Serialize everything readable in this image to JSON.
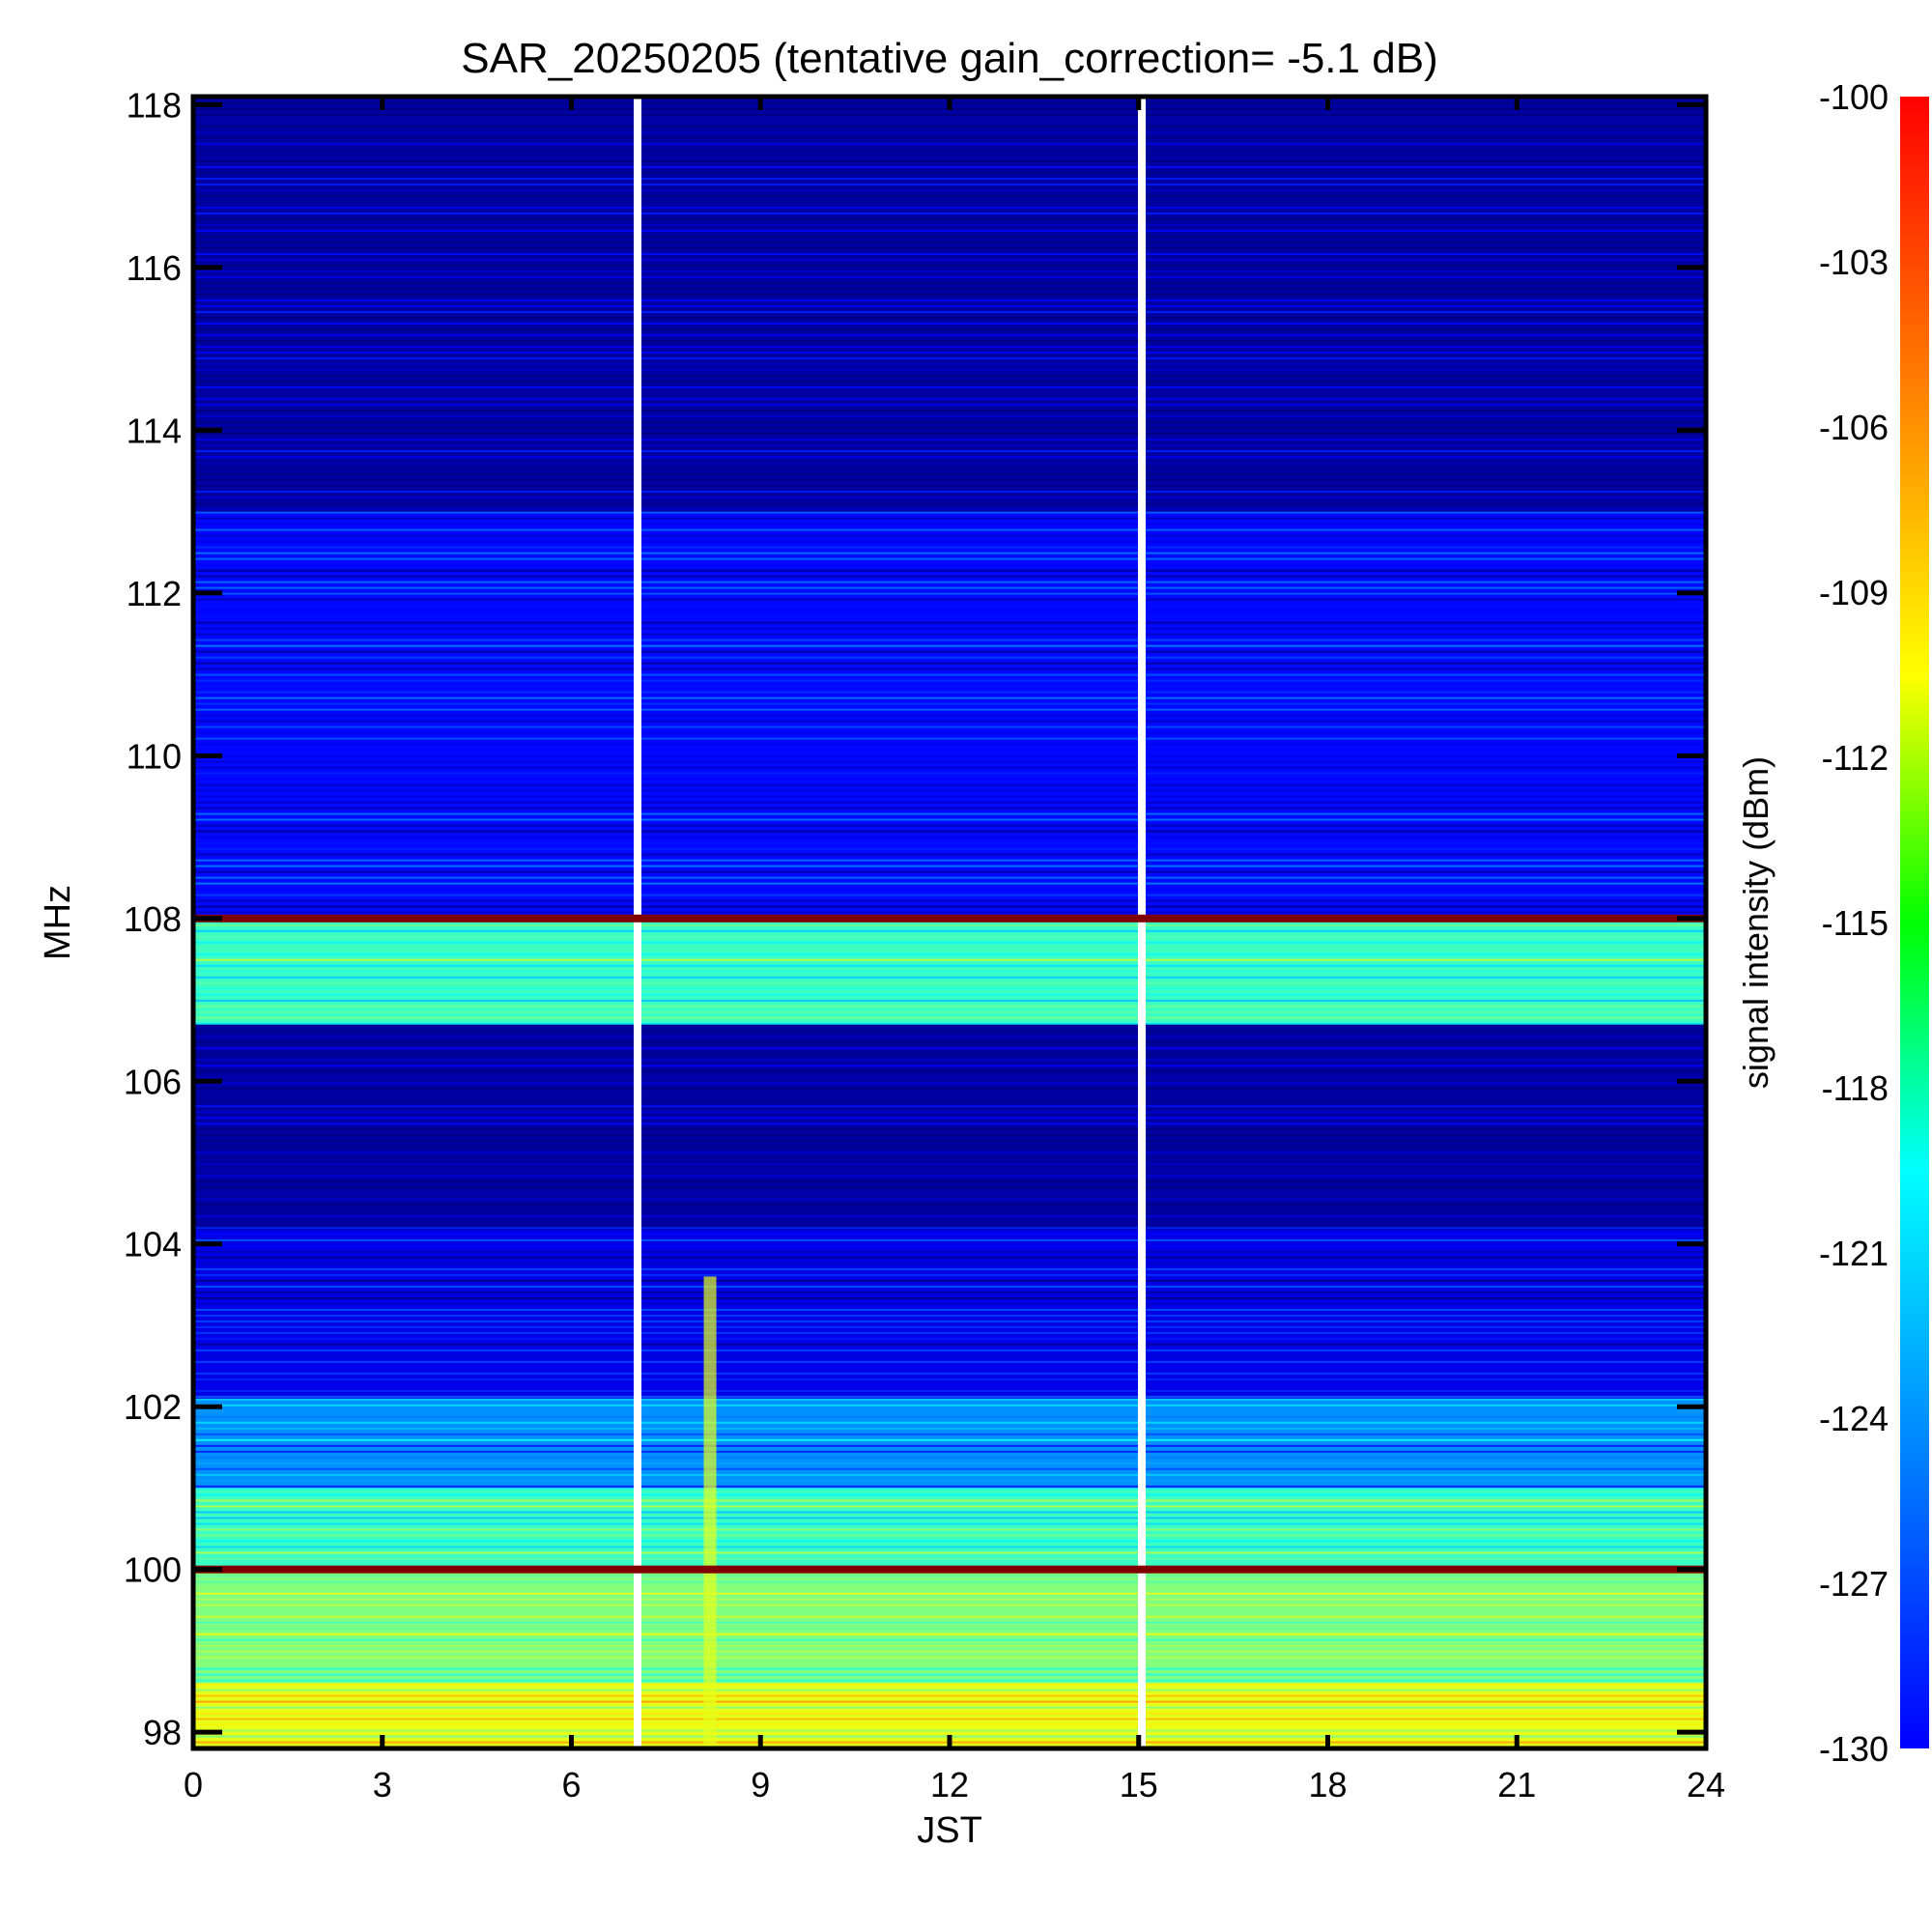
{
  "chart_data": {
    "type": "heatmap",
    "title": "SAR_20250205 (tentative gain_correction= -5.1 dB)",
    "xlabel": "JST",
    "ylabel": "MHz",
    "xlim": [
      0,
      24
    ],
    "ylim": [
      97.8,
      118.1
    ],
    "x_ticks": [
      "0",
      "3",
      "6",
      "9",
      "12",
      "15",
      "18",
      "21",
      "24"
    ],
    "x_tick_values": [
      0,
      3,
      6,
      9,
      12,
      15,
      18,
      21,
      24
    ],
    "y_ticks": [
      "98",
      "100",
      "102",
      "104",
      "106",
      "108",
      "110",
      "112",
      "114",
      "116",
      "118"
    ],
    "y_tick_values": [
      98,
      100,
      102,
      104,
      106,
      108,
      110,
      112,
      114,
      116,
      118
    ],
    "colorbar": {
      "label": "signal intensity (dBm)",
      "range": [
        -130,
        -100
      ],
      "ticks": [
        "-100",
        "-103",
        "-106",
        "-109",
        "-112",
        "-115",
        "-118",
        "-121",
        "-124",
        "-127",
        "-130"
      ],
      "tick_values": [
        -100,
        -103,
        -106,
        -109,
        -112,
        -115,
        -118,
        -121,
        -124,
        -127,
        -130
      ],
      "colormap": "jet (blue at -130 dBm, cyan, green, yellow, red at -100 dBm)"
    },
    "no_data_gaps_jst": [
      7.05,
      15.05
    ],
    "strong_carriers_mhz": [
      {
        "freq": 100.0,
        "level_dbm": -100
      },
      {
        "freq": 108.0,
        "level_dbm": -100
      }
    ],
    "frequency_bands": [
      {
        "from_mhz": 97.8,
        "to_mhz": 98.6,
        "level_dbm": -112,
        "note": "yellow-green"
      },
      {
        "from_mhz": 98.6,
        "to_mhz": 100.0,
        "level_dbm": -115,
        "note": "green"
      },
      {
        "from_mhz": 100.0,
        "to_mhz": 101.0,
        "level_dbm": -117,
        "note": "green"
      },
      {
        "from_mhz": 101.0,
        "to_mhz": 102.1,
        "level_dbm": -122,
        "note": "cyan"
      },
      {
        "from_mhz": 102.1,
        "to_mhz": 104.2,
        "level_dbm": -127,
        "note": "blue"
      },
      {
        "from_mhz": 104.2,
        "to_mhz": 106.7,
        "level_dbm": -129,
        "note": "blue / no signal"
      },
      {
        "from_mhz": 106.7,
        "to_mhz": 108.0,
        "level_dbm": -117,
        "note": "green-cyan"
      },
      {
        "from_mhz": 108.0,
        "to_mhz": 113.0,
        "level_dbm": -126,
        "note": "blue"
      },
      {
        "from_mhz": 113.0,
        "to_mhz": 118.1,
        "level_dbm": -129,
        "note": "blue / no signal"
      }
    ],
    "transient_signal": {
      "jst_from": 8.1,
      "jst_to": 8.3,
      "mhz_from": 97.8,
      "mhz_to": 103.6,
      "level_dbm": -112
    },
    "colors": {
      "axis": "#000000",
      "no_data": "#ffffff",
      "low": "#0a28f0",
      "high": "#ff0000"
    }
  }
}
